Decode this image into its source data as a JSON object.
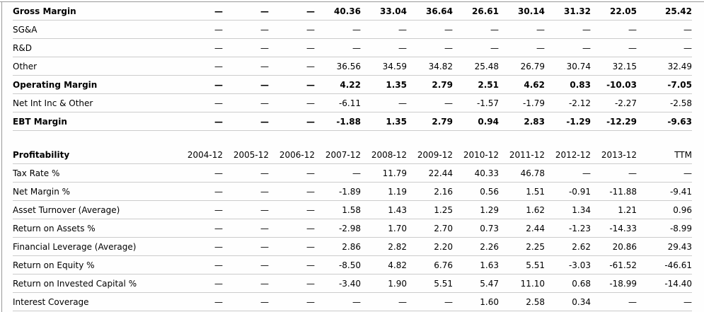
{
  "colors": {
    "frame_border": "#9a9a9a",
    "row_line": "#cccccc",
    "text": "#000000",
    "background": "#ffffff"
  },
  "section1": {
    "rows": [
      {
        "label": "Gross Margin",
        "bold": true,
        "values": [
          "—",
          "—",
          "—",
          "40.36",
          "33.04",
          "36.64",
          "26.61",
          "30.14",
          "31.32",
          "22.05",
          "25.42"
        ]
      },
      {
        "label": "SG&A",
        "bold": false,
        "values": [
          "—",
          "—",
          "—",
          "—",
          "—",
          "—",
          "—",
          "—",
          "—",
          "—",
          "—"
        ]
      },
      {
        "label": "R&D",
        "bold": false,
        "values": [
          "—",
          "—",
          "—",
          "—",
          "—",
          "—",
          "—",
          "—",
          "—",
          "—",
          "—"
        ]
      },
      {
        "label": "Other",
        "bold": false,
        "values": [
          "—",
          "—",
          "—",
          "36.56",
          "34.59",
          "34.82",
          "25.48",
          "26.79",
          "30.74",
          "32.15",
          "32.49"
        ]
      },
      {
        "label": "Operating Margin",
        "bold": true,
        "values": [
          "—",
          "—",
          "—",
          "4.22",
          "1.35",
          "2.79",
          "2.51",
          "4.62",
          "0.83",
          "-10.03",
          "-7.05"
        ]
      },
      {
        "label": "Net Int Inc & Other",
        "bold": false,
        "values": [
          "—",
          "—",
          "—",
          "-6.11",
          "—",
          "—",
          "-1.57",
          "-1.79",
          "-2.12",
          "-2.27",
          "-2.58"
        ]
      },
      {
        "label": "EBT Margin",
        "bold": true,
        "values": [
          "—",
          "—",
          "—",
          "-1.88",
          "1.35",
          "2.79",
          "0.94",
          "2.83",
          "-1.29",
          "-12.29",
          "-9.63"
        ]
      }
    ]
  },
  "section2": {
    "title": "Profitability",
    "columns": [
      "2004-12",
      "2005-12",
      "2006-12",
      "2007-12",
      "2008-12",
      "2009-12",
      "2010-12",
      "2011-12",
      "2012-12",
      "2013-12",
      "TTM"
    ],
    "rows": [
      {
        "label": "Tax Rate %",
        "bold": false,
        "values": [
          "—",
          "—",
          "—",
          "—",
          "11.79",
          "22.44",
          "40.33",
          "46.78",
          "—",
          "—",
          "—"
        ]
      },
      {
        "label": "Net Margin %",
        "bold": false,
        "values": [
          "—",
          "—",
          "—",
          "-1.89",
          "1.19",
          "2.16",
          "0.56",
          "1.51",
          "-0.91",
          "-11.88",
          "-9.41"
        ]
      },
      {
        "label": "Asset Turnover (Average)",
        "bold": false,
        "values": [
          "—",
          "—",
          "—",
          "1.58",
          "1.43",
          "1.25",
          "1.29",
          "1.62",
          "1.34",
          "1.21",
          "0.96"
        ]
      },
      {
        "label": "Return on Assets %",
        "bold": false,
        "values": [
          "—",
          "—",
          "—",
          "-2.98",
          "1.70",
          "2.70",
          "0.73",
          "2.44",
          "-1.23",
          "-14.33",
          "-8.99"
        ]
      },
      {
        "label": "Financial Leverage (Average)",
        "bold": false,
        "values": [
          "—",
          "—",
          "—",
          "2.86",
          "2.82",
          "2.20",
          "2.26",
          "2.25",
          "2.62",
          "20.86",
          "29.43"
        ]
      },
      {
        "label": "Return on Equity %",
        "bold": false,
        "values": [
          "—",
          "—",
          "—",
          "-8.50",
          "4.82",
          "6.76",
          "1.63",
          "5.51",
          "-3.03",
          "-61.52",
          "-46.61"
        ]
      },
      {
        "label": "Return on Invested Capital %",
        "bold": false,
        "values": [
          "—",
          "—",
          "—",
          "-3.40",
          "1.90",
          "5.51",
          "5.47",
          "11.10",
          "0.68",
          "-18.99",
          "-14.40"
        ]
      },
      {
        "label": "Interest Coverage",
        "bold": false,
        "values": [
          "—",
          "—",
          "—",
          "—",
          "—",
          "—",
          "1.60",
          "2.58",
          "0.34",
          "—",
          "—"
        ]
      }
    ]
  }
}
